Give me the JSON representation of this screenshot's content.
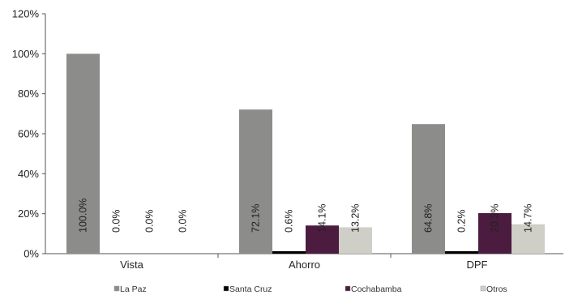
{
  "chart_data": {
    "type": "bar",
    "title": "",
    "xlabel": "",
    "ylabel": "",
    "categories": [
      "Vista",
      "Ahorro",
      "DPF"
    ],
    "series": [
      {
        "name": "La Paz",
        "values": [
          100.0,
          72.1,
          64.8
        ],
        "labels": [
          "100.0%",
          "72.1%",
          "64.8%"
        ],
        "color": "#8c8c8a"
      },
      {
        "name": "Santa Cruz",
        "values": [
          0.0,
          0.6,
          0.2
        ],
        "labels": [
          "0.0%",
          "0.6%",
          "0.2%"
        ],
        "color": "#000000"
      },
      {
        "name": "Cochabamba",
        "values": [
          0.0,
          14.1,
          20.3
        ],
        "labels": [
          "0.0%",
          "14.1%",
          "20.3%"
        ],
        "color": "#4b1c3f"
      },
      {
        "name": "Otros",
        "values": [
          0.0,
          13.2,
          14.7
        ],
        "labels": [
          "0.0%",
          "13.2%",
          "14.7%"
        ],
        "color": "#cfcfc8"
      }
    ],
    "ylim": [
      0,
      120
    ],
    "yticks": [
      0,
      20,
      40,
      60,
      80,
      100,
      120
    ],
    "ytick_labels": [
      "0%",
      "20%",
      "40%",
      "60%",
      "80%",
      "100%",
      "120%"
    ],
    "grid": false,
    "legend_position": "bottom"
  }
}
